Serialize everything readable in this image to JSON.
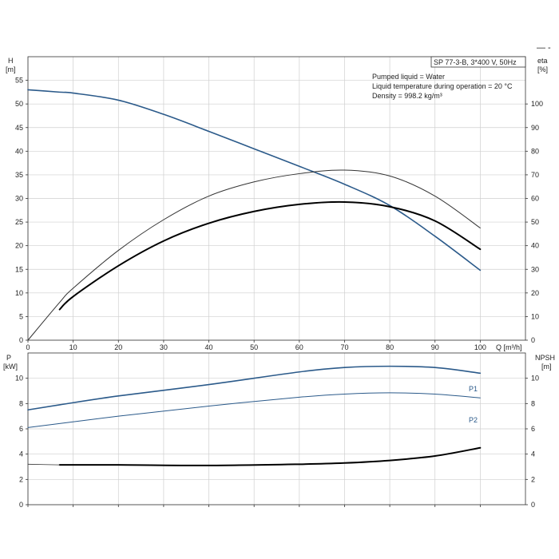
{
  "header": {
    "model": "SP 77-3-B, 3*400 V, 50Hz",
    "corner_mark": "— -",
    "info_lines": [
      "Pumped liquid = Water",
      "Liquid temperature during operation = 20 °C",
      "Density = 998.2 kg/m³"
    ]
  },
  "chart_data": [
    {
      "type": "line",
      "xlabel": "Q [m³/h]",
      "ylabel_left_name": "H",
      "ylabel_left_unit": "[m]",
      "ylabel_right_name": "eta",
      "ylabel_right_unit": "[%]",
      "xlim": [
        0,
        110
      ],
      "ylim_left": [
        0,
        60
      ],
      "ylim_right": [
        0,
        120
      ],
      "x_ticks": [
        0,
        10,
        20,
        30,
        40,
        50,
        60,
        70,
        80,
        90,
        100
      ],
      "y_left_ticks": [
        0,
        5,
        10,
        15,
        20,
        25,
        30,
        35,
        40,
        45,
        50,
        55
      ],
      "y_right_ticks": [
        0,
        10,
        20,
        30,
        40,
        50,
        60,
        70,
        80,
        90,
        100
      ],
      "grid": true,
      "series": [
        {
          "axis": "left",
          "color": "#2b5a8a",
          "width": 1.6,
          "x": [
            0,
            7,
            10,
            20,
            30,
            40,
            50,
            60,
            70,
            80,
            90,
            100
          ],
          "y": [
            53,
            52.5,
            52.3,
            50.8,
            47.8,
            44.2,
            40.5,
            36.8,
            33,
            28.5,
            22,
            14.8
          ]
        },
        {
          "axis": "right",
          "color": "#333333",
          "width": 1.0,
          "x": [
            0,
            7,
            10,
            20,
            30,
            40,
            50,
            60,
            70,
            80,
            90,
            100
          ],
          "y": [
            0,
            16,
            22,
            38,
            51,
            61,
            67,
            70.5,
            72,
            69.5,
            61,
            47.5
          ]
        },
        {
          "axis": "right",
          "color": "#000000",
          "width": 2.0,
          "x": [
            7,
            10,
            20,
            30,
            40,
            50,
            60,
            70,
            80,
            90,
            100
          ],
          "y": [
            13,
            18.5,
            31.5,
            42,
            49.5,
            54.5,
            57.5,
            58.5,
            56.5,
            50.5,
            38.5
          ]
        }
      ]
    },
    {
      "type": "line",
      "ylabel_left_name": "P",
      "ylabel_left_unit": "[kW]",
      "ylabel_right_name": "NPSH",
      "ylabel_right_unit": "[m]",
      "xlim": [
        0,
        110
      ],
      "ylim_left": [
        0,
        12
      ],
      "ylim_right": [
        0,
        12
      ],
      "y_left_ticks": [
        0,
        2,
        4,
        6,
        8,
        10
      ],
      "y_right_ticks": [
        0,
        2,
        4,
        6,
        8,
        10
      ],
      "grid": true,
      "series": [
        {
          "name": "P1",
          "axis": "left",
          "color": "#2b5a8a",
          "width": 1.6,
          "x": [
            0,
            7,
            20,
            40,
            60,
            70,
            80,
            90,
            100
          ],
          "y": [
            7.5,
            7.9,
            8.6,
            9.5,
            10.5,
            10.85,
            10.95,
            10.85,
            10.4
          ]
        },
        {
          "name": "P2",
          "axis": "left",
          "color": "#2b5a8a",
          "width": 1.0,
          "x": [
            0,
            20,
            40,
            60,
            70,
            80,
            90,
            100
          ],
          "y": [
            6.1,
            7.0,
            7.8,
            8.5,
            8.75,
            8.85,
            8.75,
            8.45
          ]
        },
        {
          "axis": "right",
          "color": "#000000",
          "width": 2.0,
          "x": [
            7,
            20,
            40,
            60,
            70,
            80,
            90,
            100
          ],
          "y": [
            3.15,
            3.15,
            3.1,
            3.2,
            3.3,
            3.5,
            3.85,
            4.5
          ]
        },
        {
          "axis": "right",
          "color": "#333333",
          "width": 0.8,
          "x": [
            0,
            7
          ],
          "y": [
            3.2,
            3.15
          ]
        }
      ]
    }
  ]
}
